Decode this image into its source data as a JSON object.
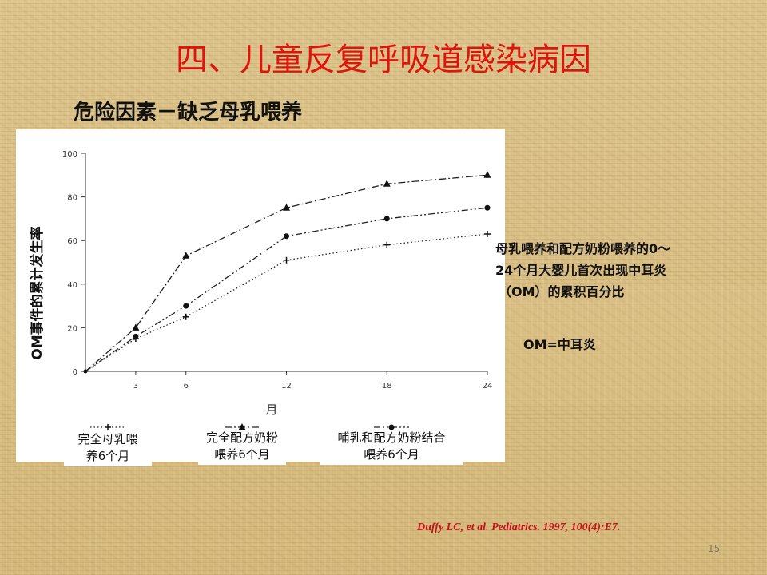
{
  "slide": {
    "title": "四、儿童反复呼吸道感染病因",
    "subtitle": "危险因素－缺乏母乳喂养",
    "side_note_lines": [
      "母乳喂养和配方奶粉喂养的0～",
      "24个月大婴儿首次出现中耳炎",
      "（OM）的累积百分比"
    ],
    "om_note": "OM=中耳炎",
    "citation": "Duffy LC, et al.  Pediatrics. 1997,  100(4):E7.",
    "page_number": "15"
  },
  "legend": [
    {
      "line1": "完全母乳喂",
      "line2": "养6个月",
      "marker": "plus"
    },
    {
      "line1": "完全配方奶粉",
      "line2": "喂养6个月",
      "marker": "triangle"
    },
    {
      "line1": "哺乳和配方奶粉结合",
      "line2": "喂养6个月",
      "marker": "circle"
    }
  ],
  "chart_data": {
    "type": "line",
    "x": [
      0,
      3,
      6,
      12,
      18,
      24
    ],
    "x_tick_labels": [
      "3",
      "6",
      "12",
      "18",
      "24"
    ],
    "y_ticks": [
      0,
      20,
      40,
      60,
      80,
      100
    ],
    "ylim": [
      0,
      100
    ],
    "xlabel": "月",
    "ylabel": "OM事件的累计发生率",
    "series": [
      {
        "name": "完全母乳喂养6个月",
        "marker": "plus",
        "dash": "dotted",
        "values": [
          0,
          15,
          25,
          51,
          58,
          63
        ]
      },
      {
        "name": "完全配方奶粉喂养6个月",
        "marker": "triangle",
        "dash": "dashdot",
        "values": [
          0,
          20,
          53,
          75,
          86,
          90
        ]
      },
      {
        "name": "哺乳和配方奶粉结合喂养6个月",
        "marker": "circle",
        "dash": "dashdotdot",
        "values": [
          0,
          16,
          30,
          62,
          70,
          75
        ]
      }
    ],
    "grid": false,
    "legend_position": "bottom"
  }
}
